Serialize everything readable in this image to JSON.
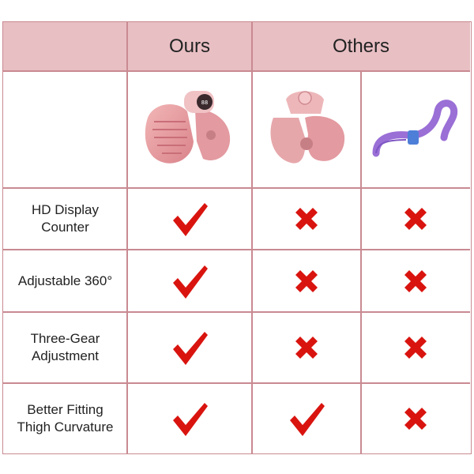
{
  "header": {
    "ours_label": "Ours",
    "others_label": "Others"
  },
  "products": [
    {
      "name": "ours-kegel-trainer-image",
      "icon": "pink-pelvic-trainer-with-display"
    },
    {
      "name": "other-pelvic-trainer-image",
      "icon": "pink-pelvic-trainer"
    },
    {
      "name": "other-thigh-toner-image",
      "icon": "purple-thigh-master"
    }
  ],
  "features": [
    {
      "label": "HD Display\nCounter",
      "ours": true,
      "other1": false,
      "other2": false
    },
    {
      "label": "Adjustable 360°",
      "ours": true,
      "other1": false,
      "other2": false
    },
    {
      "label": "Three-Gear\nAdjustment",
      "ours": true,
      "other1": false,
      "other2": false
    },
    {
      "label": "Better Fitting\nThigh Curvature",
      "ours": true,
      "other1": true,
      "other2": false
    }
  ],
  "colors": {
    "header_bg": "#e8bfc3",
    "border": "#c98a92",
    "check": "#d9140f",
    "cross": "#d9140f"
  }
}
